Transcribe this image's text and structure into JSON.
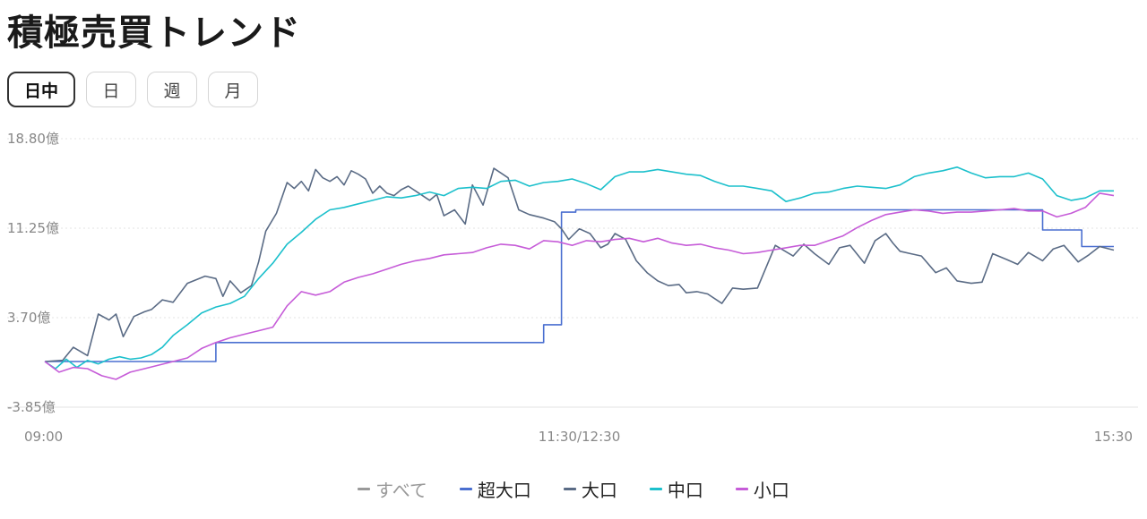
{
  "page": {
    "title": "積極売買トレンド"
  },
  "tabs": [
    {
      "label": "日中",
      "active": true
    },
    {
      "label": "日",
      "active": false
    },
    {
      "label": "週",
      "active": false
    },
    {
      "label": "月",
      "active": false
    }
  ],
  "chart_data": {
    "type": "line",
    "ylim": [
      -3.85,
      18.8
    ],
    "yticks": [
      "18.80億",
      "11.25億",
      "3.70億",
      "-3.85億"
    ],
    "ytick_values": [
      18.8,
      11.25,
      3.7,
      -3.85
    ],
    "xticks": [
      "09:00",
      "11:30/12:30",
      "15:30"
    ],
    "xlim": [
      0,
      300
    ],
    "xtick_positions": [
      0,
      150,
      300
    ],
    "grid": true,
    "legend_position": "bottom",
    "series": [
      {
        "name": "すべて",
        "color": "#999999",
        "visible": false,
        "x": [],
        "y": []
      },
      {
        "name": "超大口",
        "color": "#4a6fd0",
        "visible": true,
        "x": [
          0,
          48,
          48,
          140,
          140,
          145,
          145,
          149,
          149,
          280,
          280,
          291,
          291,
          300
        ],
        "y": [
          0,
          0,
          1.6,
          1.6,
          3.1,
          3.1,
          12.6,
          12.6,
          12.8,
          12.8,
          11.1,
          11.1,
          9.7,
          9.7
        ]
      },
      {
        "name": "大口",
        "color": "#5a6b85",
        "visible": true,
        "x": [
          0,
          5,
          8,
          12,
          15,
          18,
          20,
          22,
          25,
          28,
          30,
          33,
          36,
          40,
          45,
          48,
          50,
          52,
          55,
          58,
          60,
          62,
          65,
          68,
          70,
          72,
          74,
          76,
          78,
          80,
          82,
          84,
          86,
          88,
          90,
          92,
          94,
          96,
          98,
          100,
          102,
          105,
          108,
          110,
          112,
          115,
          118,
          120,
          123,
          126,
          130,
          133,
          136,
          140,
          143,
          145,
          147,
          150,
          153,
          156,
          158,
          160,
          163,
          166,
          169,
          172,
          175,
          178,
          180,
          183,
          186,
          190,
          193,
          196,
          200,
          205,
          210,
          213,
          216,
          220,
          223,
          226,
          230,
          233,
          236,
          238,
          240,
          243,
          246,
          250,
          253,
          256,
          260,
          263,
          266,
          270,
          273,
          276,
          280,
          283,
          286,
          290,
          293,
          296,
          300
        ],
        "y": [
          0,
          0.1,
          1.2,
          0.5,
          4.0,
          3.5,
          4.0,
          2.1,
          3.8,
          4.2,
          4.4,
          5.2,
          5.0,
          6.6,
          7.2,
          7.0,
          5.5,
          6.8,
          5.8,
          6.4,
          8.4,
          11.0,
          12.5,
          15.1,
          14.6,
          15.2,
          14.4,
          16.2,
          15.5,
          15.2,
          15.6,
          14.9,
          16.1,
          15.8,
          15.4,
          14.2,
          14.8,
          14.2,
          14.0,
          14.5,
          14.8,
          14.2,
          13.6,
          14.1,
          12.3,
          12.8,
          11.6,
          14.9,
          13.2,
          16.3,
          15.5,
          12.8,
          12.4,
          12.1,
          11.8,
          11.2,
          10.3,
          11.2,
          10.8,
          9.6,
          9.9,
          10.8,
          10.3,
          8.5,
          7.5,
          6.8,
          6.4,
          6.5,
          5.8,
          5.9,
          5.7,
          4.9,
          6.2,
          6.1,
          6.2,
          9.8,
          8.9,
          9.9,
          9.1,
          8.2,
          9.6,
          9.8,
          8.3,
          10.2,
          10.8,
          10.0,
          9.3,
          9.1,
          8.9,
          7.5,
          7.9,
          6.8,
          6.6,
          6.7,
          9.1,
          8.6,
          8.2,
          9.2,
          8.5,
          9.5,
          9.8,
          8.4,
          9.0,
          9.7,
          9.4
        ]
      },
      {
        "name": "中口",
        "color": "#1cc0cc",
        "visible": true,
        "x": [
          0,
          3,
          6,
          9,
          12,
          15,
          18,
          21,
          24,
          27,
          30,
          33,
          36,
          40,
          44,
          48,
          52,
          56,
          60,
          64,
          68,
          72,
          76,
          80,
          84,
          88,
          92,
          96,
          100,
          104,
          108,
          112,
          116,
          120,
          124,
          128,
          132,
          136,
          140,
          144,
          148,
          152,
          156,
          160,
          164,
          168,
          172,
          176,
          180,
          184,
          188,
          192,
          196,
          200,
          204,
          208,
          212,
          216,
          220,
          224,
          228,
          232,
          236,
          240,
          244,
          248,
          252,
          256,
          260,
          264,
          268,
          272,
          276,
          280,
          284,
          288,
          292,
          296,
          300
        ],
        "y": [
          0,
          -0.6,
          0.2,
          -0.5,
          0.1,
          -0.2,
          0.2,
          0.4,
          0.2,
          0.3,
          0.6,
          1.2,
          2.2,
          3.1,
          4.1,
          4.6,
          4.9,
          5.5,
          7.0,
          8.3,
          9.9,
          10.9,
          12.0,
          12.8,
          13.0,
          13.3,
          13.6,
          13.9,
          13.8,
          14.0,
          14.3,
          14.0,
          14.6,
          14.7,
          14.6,
          15.2,
          15.3,
          14.8,
          15.1,
          15.2,
          15.4,
          15.0,
          14.5,
          15.6,
          16.0,
          16.0,
          16.2,
          16.0,
          15.8,
          15.7,
          15.2,
          14.8,
          14.8,
          14.6,
          14.4,
          13.5,
          13.8,
          14.2,
          14.3,
          14.6,
          14.8,
          14.7,
          14.6,
          14.9,
          15.6,
          15.9,
          16.1,
          16.4,
          15.9,
          15.5,
          15.6,
          15.6,
          15.9,
          15.4,
          14.0,
          13.6,
          13.8,
          14.4,
          14.4
        ]
      },
      {
        "name": "小口",
        "color": "#c65cd8",
        "visible": true,
        "x": [
          0,
          4,
          8,
          12,
          16,
          20,
          24,
          28,
          32,
          36,
          40,
          44,
          48,
          52,
          56,
          60,
          64,
          68,
          72,
          76,
          80,
          84,
          88,
          92,
          96,
          100,
          104,
          108,
          112,
          116,
          120,
          124,
          128,
          132,
          136,
          140,
          144,
          148,
          152,
          156,
          160,
          164,
          168,
          172,
          176,
          180,
          184,
          188,
          192,
          196,
          200,
          204,
          208,
          212,
          216,
          220,
          224,
          228,
          232,
          236,
          240,
          244,
          248,
          252,
          256,
          260,
          264,
          268,
          272,
          276,
          280,
          284,
          288,
          292,
          296,
          300
        ],
        "y": [
          0,
          -0.9,
          -0.5,
          -0.6,
          -1.2,
          -1.5,
          -0.9,
          -0.6,
          -0.3,
          0.0,
          0.3,
          1.1,
          1.6,
          2.0,
          2.3,
          2.6,
          2.9,
          4.7,
          5.9,
          5.6,
          5.9,
          6.7,
          7.1,
          7.4,
          7.8,
          8.2,
          8.5,
          8.7,
          9.0,
          9.1,
          9.2,
          9.6,
          9.9,
          9.8,
          9.5,
          10.2,
          10.1,
          9.8,
          10.2,
          10.1,
          10.3,
          10.4,
          10.1,
          10.4,
          10.0,
          9.8,
          9.9,
          9.6,
          9.4,
          9.1,
          9.2,
          9.4,
          9.6,
          9.8,
          9.8,
          10.2,
          10.6,
          11.3,
          11.9,
          12.4,
          12.6,
          12.8,
          12.7,
          12.5,
          12.6,
          12.6,
          12.7,
          12.8,
          12.9,
          12.7,
          12.7,
          12.2,
          12.5,
          13.0,
          14.2,
          14.0
        ]
      }
    ]
  }
}
